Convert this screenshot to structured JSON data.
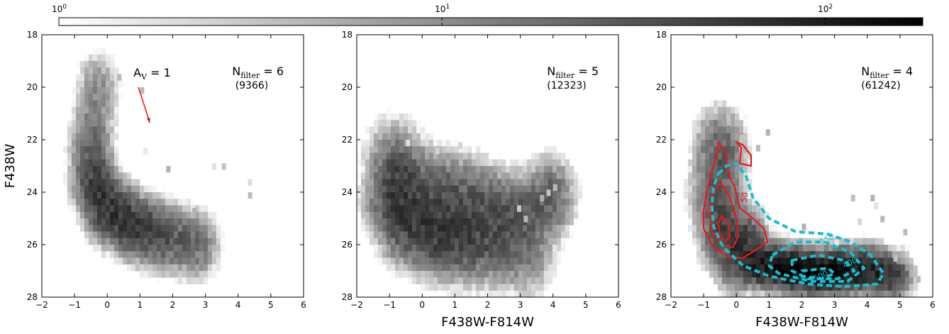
{
  "colorbar": {
    "scale": "log",
    "range": [
      1,
      180
    ],
    "colormap": "greys (white to black)",
    "ticks": [
      {
        "base": "10",
        "exp": "0",
        "value": 1
      },
      {
        "base": "10",
        "exp": "1",
        "value": 10
      },
      {
        "base": "10",
        "exp": "2",
        "value": 100
      }
    ]
  },
  "chart_data": [
    {
      "type": "heatmap",
      "xlabel": "",
      "ylabel": "F438W",
      "xlim": [
        -2,
        6
      ],
      "ylim": [
        28,
        18
      ],
      "y_inverted": true,
      "xticks": [
        -2,
        -1,
        0,
        1,
        2,
        3,
        4,
        5,
        6
      ],
      "yticks": [
        18,
        20,
        22,
        24,
        26,
        28
      ],
      "annotation": {
        "main": "N",
        "sub": "filter",
        "suffix": " = 6",
        "count": "(9366)"
      },
      "av_label": {
        "main": "A",
        "sub": "V",
        "suffix": " = 1"
      },
      "arrow": {
        "from": [
          0.95,
          20.0
        ],
        "to": [
          1.3,
          21.35
        ],
        "color": "#e41a1c"
      },
      "density": {
        "ridge": [
          [
            -0.3,
            20.0
          ],
          [
            -0.5,
            22.0
          ],
          [
            -0.4,
            23.5
          ],
          [
            0.0,
            24.6
          ],
          [
            0.8,
            25.3
          ],
          [
            1.8,
            25.8
          ],
          [
            2.8,
            26.1
          ]
        ],
        "width": 0.55,
        "peak": 70,
        "sigma_along": 1.6,
        "peak_at": [
          0.0,
          24.8
        ]
      },
      "outliers": [
        [
          1.0,
          20.0
        ],
        [
          1.1,
          22.3
        ],
        [
          1.8,
          23.0
        ],
        [
          3.2,
          22.9
        ],
        [
          3.5,
          22.9
        ],
        [
          4.3,
          23.5
        ],
        [
          4.3,
          24.0
        ],
        [
          0.3,
          19.5
        ],
        [
          2.6,
          24.6
        ]
      ]
    },
    {
      "type": "heatmap",
      "xlabel": "F438W-F814W",
      "ylabel": "",
      "xlim": [
        -2,
        6
      ],
      "ylim": [
        28,
        18
      ],
      "y_inverted": true,
      "xticks": [
        -2,
        -1,
        0,
        1,
        2,
        3,
        4,
        5,
        6
      ],
      "yticks": [
        18,
        20,
        22,
        24,
        26,
        28
      ],
      "annotation": {
        "main": "N",
        "sub": "filter",
        "suffix": " = 5",
        "count": "(12323)"
      },
      "density": {
        "ridge": [
          [
            -0.9,
            22.8
          ],
          [
            -0.9,
            24.0
          ],
          [
            -0.5,
            25.0
          ],
          [
            0.3,
            25.5
          ],
          [
            1.2,
            25.8
          ],
          [
            2.2,
            26.0
          ],
          [
            3.2,
            26.3
          ]
        ],
        "upper_arm": [
          [
            -0.6,
            23.6
          ],
          [
            0.5,
            23.9
          ],
          [
            1.5,
            24.2
          ],
          [
            2.3,
            24.6
          ],
          [
            3.2,
            24.8
          ],
          [
            3.9,
            24.2
          ]
        ],
        "width": 0.75,
        "peak": 60,
        "sigma_along": 2.2,
        "peak_at": [
          0.2,
          25.3
        ]
      },
      "outliers": [
        [
          -0.5,
          22.0
        ],
        [
          0.4,
          22.3
        ],
        [
          1.1,
          22.1
        ],
        [
          3.6,
          24.1
        ],
        [
          3.8,
          23.9
        ],
        [
          4.0,
          23.7
        ],
        [
          3.1,
          24.9
        ],
        [
          2.9,
          24.5
        ]
      ]
    },
    {
      "type": "heatmap",
      "xlabel": "F438W-F814W",
      "ylabel": "",
      "xlim": [
        -2,
        6
      ],
      "ylim": [
        28,
        18
      ],
      "y_inverted": true,
      "xticks": [
        -2,
        -1,
        0,
        1,
        2,
        3,
        4,
        5,
        6
      ],
      "yticks": [
        18,
        20,
        22,
        24,
        26,
        28
      ],
      "annotation": {
        "main": "N",
        "sub": "filter",
        "suffix": " = 4",
        "count": "(61242)"
      },
      "density": {
        "ridge": [
          [
            -0.5,
            22.4
          ],
          [
            -0.6,
            24.0
          ],
          [
            -0.4,
            25.3
          ],
          [
            0.0,
            26.0
          ]
        ],
        "lower_blob": [
          [
            0.8,
            26.7
          ],
          [
            1.7,
            26.9
          ],
          [
            2.4,
            27.1
          ],
          [
            3.2,
            27.0
          ],
          [
            4.0,
            26.9
          ],
          [
            4.7,
            27.2
          ]
        ],
        "width": 0.65,
        "peak": 180,
        "peak_at": [
          2.3,
          27.0
        ]
      },
      "outliers": [
        [
          -0.3,
          21.2
        ],
        [
          0.1,
          21.8
        ],
        [
          0.6,
          22.2
        ],
        [
          0.9,
          21.6
        ],
        [
          3.5,
          24.1
        ],
        [
          3.7,
          25.0
        ],
        [
          4.1,
          24.1
        ],
        [
          4.2,
          24.4
        ],
        [
          4.4,
          24.9
        ],
        [
          5.1,
          25.4
        ],
        [
          4.8,
          26.4
        ],
        [
          5.4,
          26.8
        ],
        [
          5.5,
          27.2
        ],
        [
          0.3,
          27.8
        ],
        [
          3.0,
          25.8
        ],
        [
          2.0,
          25.2
        ]
      ],
      "contours": [
        {
          "style": "solid",
          "color": "#e41a1c",
          "level": "",
          "points": [
            [
              -0.55,
              22.1
            ],
            [
              -0.3,
              22.5
            ],
            [
              -0.25,
              23.3
            ],
            [
              -0.05,
              23.8
            ],
            [
              0.1,
              24.6
            ],
            [
              0.5,
              25.0
            ],
            [
              0.85,
              25.4
            ],
            [
              0.95,
              25.9
            ],
            [
              0.6,
              26.2
            ],
            [
              0.2,
              26.5
            ],
            [
              -0.2,
              26.5
            ],
            [
              -0.7,
              26.1
            ],
            [
              -1.0,
              25.4
            ],
            [
              -1.0,
              24.7
            ],
            [
              -0.9,
              24.0
            ],
            [
              -0.75,
              23.2
            ],
            [
              -0.6,
              22.6
            ]
          ]
        },
        {
          "style": "solid",
          "color": "#e41a1c",
          "level": "",
          "points": [
            [
              0.0,
              22.1
            ],
            [
              0.15,
              22.3
            ],
            [
              0.1,
              22.9
            ],
            [
              0.45,
              23.0
            ],
            [
              0.45,
              22.6
            ],
            [
              0.2,
              22.2
            ]
          ]
        },
        {
          "style": "solid",
          "color": "#e41a1c",
          "level": "200",
          "label_at": [
            -0.75,
            24.8
          ],
          "points": [
            [
              -0.5,
              23.6
            ],
            [
              -0.2,
              24.2
            ],
            [
              0.0,
              25.0
            ],
            [
              0.05,
              25.7
            ],
            [
              -0.1,
              26.1
            ],
            [
              -0.45,
              26.0
            ],
            [
              -0.75,
              25.5
            ],
            [
              -0.8,
              24.8
            ],
            [
              -0.7,
              24.1
            ]
          ]
        },
        {
          "style": "solid",
          "color": "#e41a1c",
          "level": "",
          "points": [
            [
              -0.45,
              24.9
            ],
            [
              -0.25,
              25.2
            ],
            [
              -0.2,
              25.7
            ],
            [
              -0.35,
              25.9
            ],
            [
              -0.5,
              25.6
            ],
            [
              -0.55,
              25.2
            ]
          ]
        },
        {
          "style": "solid",
          "color": "#e41a1c",
          "level": "50",
          "label_at": [
            0.3,
            24.4
          ],
          "points": []
        },
        {
          "style": "dashed",
          "color": "#17becf",
          "level": "",
          "points": [
            [
              -0.55,
              23.3
            ],
            [
              -0.3,
              23.0
            ],
            [
              0.0,
              22.9
            ],
            [
              0.3,
              23.4
            ],
            [
              0.5,
              24.2
            ],
            [
              1.0,
              25.0
            ],
            [
              1.8,
              25.5
            ],
            [
              2.8,
              25.6
            ],
            [
              3.5,
              25.9
            ],
            [
              4.1,
              26.4
            ],
            [
              4.5,
              27.1
            ],
            [
              4.3,
              27.5
            ],
            [
              3.3,
              27.6
            ],
            [
              2.2,
              27.5
            ],
            [
              1.0,
              27.2
            ],
            [
              0.2,
              26.8
            ],
            [
              -0.4,
              26.1
            ],
            [
              -0.7,
              25.3
            ],
            [
              -0.75,
              24.5
            ],
            [
              -0.7,
              23.8
            ]
          ]
        },
        {
          "style": "dashed",
          "color": "#17becf",
          "level": "150",
          "label_at": [
            2.6,
            26.0
          ],
          "points": [
            [
              1.1,
              26.4
            ],
            [
              1.8,
              25.9
            ],
            [
              2.7,
              25.9
            ],
            [
              3.5,
              26.3
            ],
            [
              3.9,
              26.9
            ],
            [
              3.4,
              27.4
            ],
            [
              2.3,
              27.4
            ],
            [
              1.3,
              27.1
            ],
            [
              1.0,
              26.8
            ]
          ]
        },
        {
          "style": "dashed",
          "color": "#17becf",
          "level": "400",
          "label_at": [
            3.3,
            26.9
          ],
          "points": [
            [
              1.7,
              26.6
            ],
            [
              2.5,
              26.4
            ],
            [
              3.3,
              26.6
            ],
            [
              3.6,
              27.0
            ],
            [
              3.1,
              27.3
            ],
            [
              2.2,
              27.3
            ],
            [
              1.7,
              27.0
            ]
          ]
        },
        {
          "style": "dashed",
          "color": "#17becf",
          "level": "500",
          "label_at": [
            2.4,
            27.4
          ],
          "points": [
            [
              2.0,
              27.0
            ],
            [
              2.8,
              26.9
            ],
            [
              3.0,
              27.1
            ],
            [
              2.6,
              27.3
            ],
            [
              2.0,
              27.2
            ]
          ]
        }
      ]
    }
  ]
}
